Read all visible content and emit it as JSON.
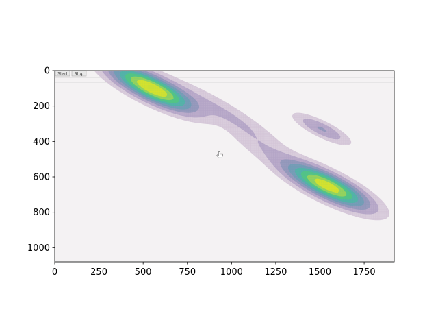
{
  "chart_data": {
    "type": "heatmap",
    "subtype": "filled-contour",
    "title": "",
    "xlabel": "",
    "ylabel": "",
    "xlim": [
      0,
      1920
    ],
    "ylim": [
      1080,
      0
    ],
    "y_axis_inverted": true,
    "x_ticks": [
      0,
      250,
      500,
      750,
      1000,
      1250,
      1500,
      1750
    ],
    "y_ticks": [
      0,
      200,
      400,
      600,
      800,
      1000
    ],
    "x_tick_labels": [
      "0",
      "250",
      "500",
      "750",
      "1000",
      "1250",
      "1500",
      "1750"
    ],
    "y_tick_labels": [
      "0",
      "200",
      "400",
      "600",
      "800",
      "1000"
    ],
    "grid": false,
    "colormap": "viridis",
    "overlay_alpha": 0.8,
    "background_screenshot": {
      "buttons": [
        "Start",
        "Stop"
      ],
      "cursor": "hand-pointer-icon",
      "cursor_at": [
        930,
        475
      ],
      "bg_color": "#f4f2f3"
    },
    "density_components": [
      {
        "center": [
          550,
          100
        ],
        "major_sd": 170,
        "minor_sd": 45,
        "angle_deg": 26,
        "weight": 1.0
      },
      {
        "center": [
          1540,
          650
        ],
        "major_sd": 170,
        "minor_sd": 45,
        "angle_deg": 26,
        "weight": 0.95
      },
      {
        "center": [
          1510,
          330
        ],
        "major_sd": 110,
        "minor_sd": 28,
        "angle_deg": 26,
        "weight": 0.28
      },
      {
        "center": [
          1000,
          260
        ],
        "major_sd": 230,
        "minor_sd": 40,
        "angle_deg": 32,
        "weight": 0.16
      },
      {
        "center": [
          1150,
          430
        ],
        "major_sd": 140,
        "minor_sd": 40,
        "angle_deg": 30,
        "weight": 0.1
      }
    ],
    "contour_levels": [
      0.07,
      0.16,
      0.27,
      0.38,
      0.5,
      0.62,
      0.74,
      0.86
    ],
    "level_colors": [
      "#d2c3d6",
      "#b1a3c6",
      "#8f96b9",
      "#6f9eb5",
      "#4fb5a6",
      "#52c582",
      "#9bd35a",
      "#d9e22b"
    ]
  }
}
